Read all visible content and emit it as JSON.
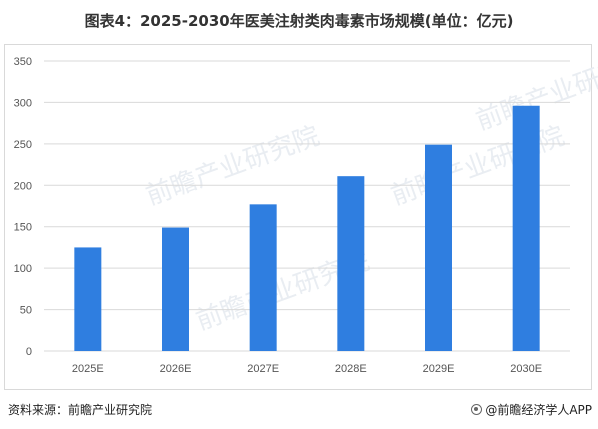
{
  "title": "图表4：2025-2030年医美注射类肉毒素市场规模(单位：亿元)",
  "footer": {
    "source": "资料来源：前瞻产业研究院",
    "brand": "@前瞻经济学人APP"
  },
  "watermark": "前瞻产业研究院",
  "colors": {
    "bar": "#2f7ee0",
    "grid": "#d9d9d9",
    "axis_text": "#555555"
  },
  "chart_data": {
    "type": "bar",
    "title": "图表4：2025-2030年医美注射类肉毒素市场规模(单位：亿元)",
    "categories": [
      "2025E",
      "2026E",
      "2027E",
      "2028E",
      "2029E",
      "2030E"
    ],
    "values": [
      125,
      149,
      177,
      211,
      249,
      296
    ],
    "xlabel": "",
    "ylabel": "",
    "ylim": [
      0,
      350
    ],
    "yticks": [
      0,
      50,
      100,
      150,
      200,
      250,
      300,
      350
    ],
    "grid": true,
    "legend": "none"
  }
}
